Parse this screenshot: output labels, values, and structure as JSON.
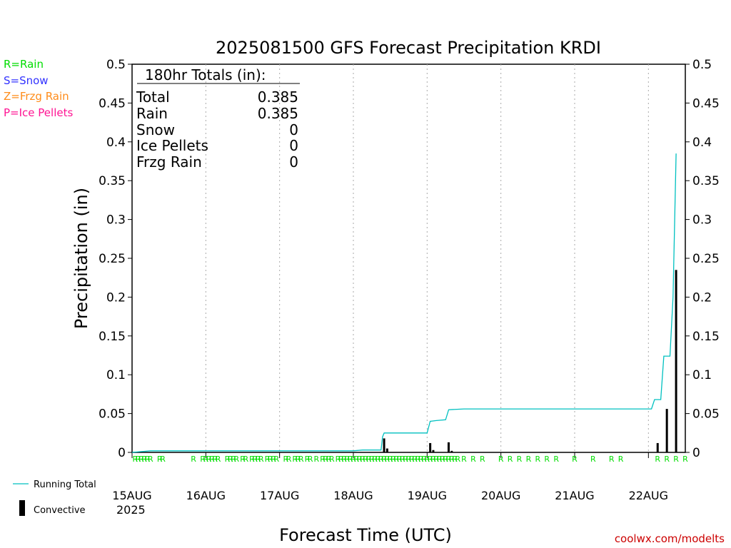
{
  "chart_data": {
    "type": "bar",
    "title": "2025081500 GFS Forecast Precipitation KRDI",
    "xlabel": "Forecast Time (UTC)",
    "ylabel": "Precipitation (in)",
    "ylim": [
      0,
      0.5
    ],
    "yticks": [
      "0",
      "0.05",
      "0.1",
      "0.15",
      "0.2",
      "0.25",
      "0.3",
      "0.35",
      "0.4",
      "0.45",
      "0.5"
    ],
    "xlim_hours": [
      0,
      180
    ],
    "xticks": [
      {
        "hour": 0,
        "label": "15AUG"
      },
      {
        "hour": 24,
        "label": "16AUG"
      },
      {
        "hour": 48,
        "label": "17AUG"
      },
      {
        "hour": 72,
        "label": "18AUG"
      },
      {
        "hour": 96,
        "label": "19AUG"
      },
      {
        "hour": 120,
        "label": "20AUG"
      },
      {
        "hour": 144,
        "label": "21AUG"
      },
      {
        "hour": 168,
        "label": "22AUG"
      }
    ],
    "year_label": "2025",
    "grid": "vertical dotted",
    "series": [
      {
        "name": "Running Total",
        "color": "#00c0c0",
        "type": "line",
        "points": [
          [
            0,
            0
          ],
          [
            3,
            0.001
          ],
          [
            6,
            0.002
          ],
          [
            30,
            0.002
          ],
          [
            54,
            0.002
          ],
          [
            72,
            0.002
          ],
          [
            75,
            0.003
          ],
          [
            81,
            0.003
          ],
          [
            81.5,
            0.02
          ],
          [
            82,
            0.025
          ],
          [
            84,
            0.025
          ],
          [
            90,
            0.025
          ],
          [
            96,
            0.025
          ],
          [
            97,
            0.04
          ],
          [
            99,
            0.041
          ],
          [
            102,
            0.042
          ],
          [
            103,
            0.055
          ],
          [
            108,
            0.056
          ],
          [
            120,
            0.056
          ],
          [
            144,
            0.056
          ],
          [
            165,
            0.056
          ],
          [
            169,
            0.056
          ],
          [
            170,
            0.068
          ],
          [
            172,
            0.068
          ],
          [
            173,
            0.124
          ],
          [
            175,
            0.124
          ],
          [
            176,
            0.2
          ],
          [
            177,
            0.385
          ]
        ]
      },
      {
        "name": "Convective",
        "color": "#000000",
        "type": "bar",
        "points": [
          [
            82,
            0.018
          ],
          [
            83,
            0.005
          ],
          [
            97,
            0.012
          ],
          [
            98,
            0.003
          ],
          [
            103,
            0.013
          ],
          [
            104,
            0.002
          ],
          [
            171,
            0.012
          ],
          [
            174,
            0.056
          ],
          [
            177,
            0.235
          ]
        ]
      }
    ],
    "rain_markers_hours": [
      1,
      2,
      3,
      4,
      5,
      6,
      9,
      10,
      20,
      23,
      24,
      25,
      26,
      27,
      28,
      31,
      32,
      33,
      34,
      36,
      37,
      39,
      40,
      41,
      42,
      44,
      45,
      46,
      47,
      50,
      51,
      53,
      54,
      55,
      57,
      58,
      60,
      62,
      63,
      64,
      65,
      67,
      68,
      69,
      70,
      71,
      72,
      73,
      74,
      75,
      76,
      77,
      78,
      79,
      80,
      81,
      82,
      83,
      84,
      85,
      86,
      87,
      88,
      89,
      90,
      91,
      92,
      93,
      94,
      95,
      96,
      97,
      98,
      99,
      100,
      101,
      102,
      103,
      104,
      105,
      106,
      108,
      111,
      114,
      120,
      123,
      126,
      129,
      132,
      135,
      138,
      144,
      150,
      156,
      159,
      171,
      174,
      177,
      180
    ],
    "rain_marker_letter": "R",
    "totals": {
      "heading": "180hr Totals (in):",
      "rows": [
        {
          "label": "Total",
          "value": "0.385"
        },
        {
          "label": "Rain",
          "value": "0.385"
        },
        {
          "label": "Snow",
          "value": "0"
        },
        {
          "label": "Ice Pellets",
          "value": "0"
        },
        {
          "label": "Frzg Rain",
          "value": "0"
        }
      ]
    }
  },
  "legend_types": [
    {
      "label": "R=Rain",
      "color": "#00dd00"
    },
    {
      "label": "S=Snow",
      "color": "#3333ff"
    },
    {
      "label": "Z=Frzg Rain",
      "color": "#ff8c1a"
    },
    {
      "label": "P=Ice Pellets",
      "color": "#ff1493"
    }
  ],
  "legend_series": {
    "running_total": "Running Total",
    "convective": "Convective"
  },
  "credit": "coolwx.com/modelts",
  "colors": {
    "credit": "#cc0000",
    "rain": "#00dd00",
    "line": "#00c0c0"
  }
}
